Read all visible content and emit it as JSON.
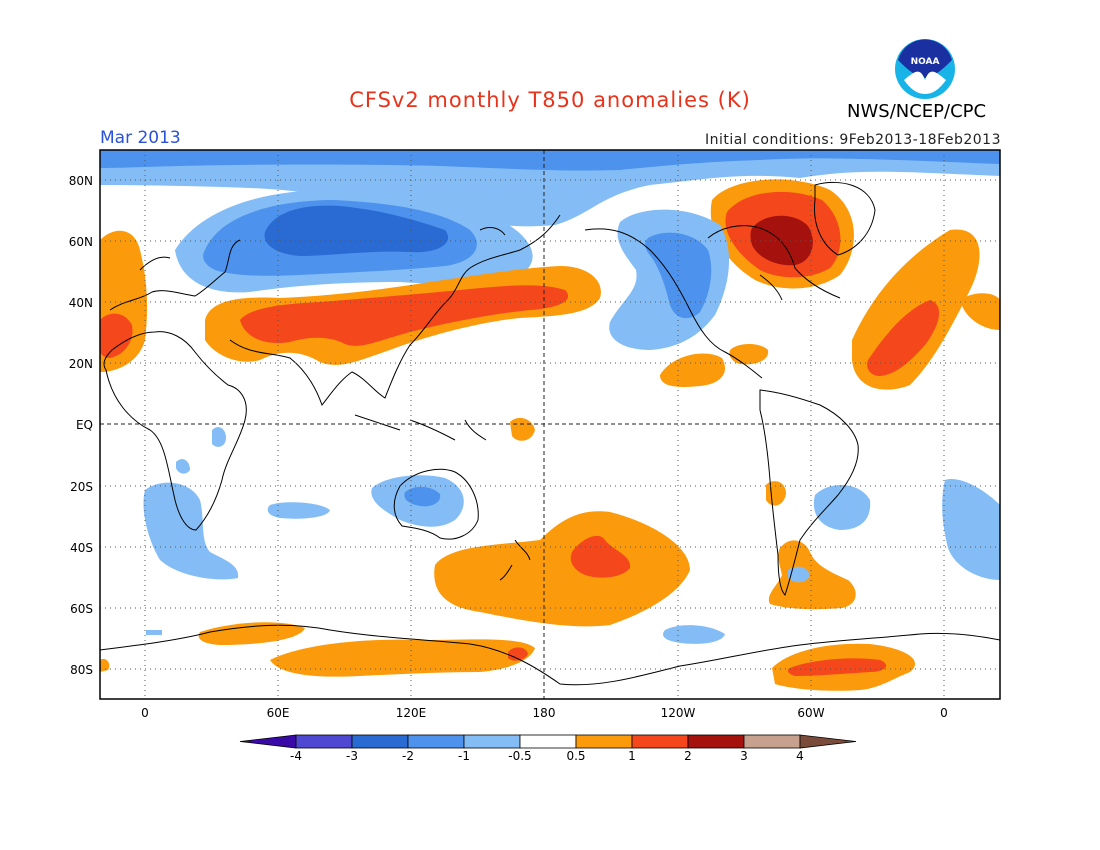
{
  "header": {
    "title": "CFSv2 monthly T850 anomalies (K)",
    "month": "Mar 2013",
    "initial_conditions": "Initial conditions: 9Feb2013-18Feb2013",
    "agency": "NWS/NCEP/CPC",
    "logo_text": "NOAA"
  },
  "map": {
    "lat_labels": [
      "80N",
      "60N",
      "40N",
      "20N",
      "EQ",
      "20S",
      "40S",
      "60S",
      "80S"
    ],
    "lon_labels": [
      "0",
      "60E",
      "120E",
      "180",
      "120W",
      "60W",
      "0"
    ],
    "projection": "cylindrical equidistant, centered on 180",
    "grid_lines": "dotted every 20 degrees; dashed equator and 180 meridian"
  },
  "colorbar": {
    "tick_labels": [
      "-4",
      "-3",
      "-2",
      "-1",
      "-0.5",
      "0.5",
      "1",
      "2",
      "3",
      "4"
    ],
    "bins": [
      {
        "range": "<-4",
        "color": "#3a0aa8"
      },
      {
        "range": "-4 to -3",
        "color": "#4f48d3"
      },
      {
        "range": "-3 to -2",
        "color": "#2a6ad3"
      },
      {
        "range": "-2 to -1",
        "color": "#4d92ec"
      },
      {
        "range": "-1 to -0.5",
        "color": "#84bdf6"
      },
      {
        "range": "-0.5 to 0.5",
        "color": "#ffffff"
      },
      {
        "range": "0.5 to 1",
        "color": "#fb9a0a"
      },
      {
        "range": "1 to 2",
        "color": "#f4471c"
      },
      {
        "range": "2 to 3",
        "color": "#a5120d"
      },
      {
        "range": "3 to 4",
        "color": "#c7a08e"
      },
      {
        "range": ">4",
        "color": "#7a4b3a"
      }
    ]
  },
  "anomaly_regions": [
    {
      "name": "Arctic band",
      "sign": "negative",
      "level": "-1 to -0.5"
    },
    {
      "name": "Northern Eurasia",
      "sign": "negative",
      "level": "-2 to -1",
      "core": "-3 to -2"
    },
    {
      "name": "Asia-Pacific mid-latitude band",
      "sign": "positive",
      "level": "0.5 to 1",
      "core": "1 to 2"
    },
    {
      "name": "Hudson Bay / Labrador",
      "sign": "positive",
      "level": "1 to 2",
      "core": "2 to 3"
    },
    {
      "name": "Western North America",
      "sign": "negative",
      "level": "-1 to -0.5",
      "core": "-2 to -1"
    },
    {
      "name": "Subtropical North Atlantic",
      "sign": "positive",
      "level": "0.5 to 1",
      "core": "1 to 2"
    },
    {
      "name": "Western Europe / Mediterranean",
      "sign": "positive",
      "level": "0.5 to 1",
      "core": "1 to 2"
    },
    {
      "name": "South Pacific",
      "sign": "positive",
      "level": "0.5 to 1",
      "core": "1 to 2"
    },
    {
      "name": "Southern Africa / South Atlantic",
      "sign": "negative",
      "level": "-1 to -0.5"
    },
    {
      "name": "Australia",
      "sign": "negative",
      "level": "-1 to -0.5",
      "core": "-2 to -1"
    },
    {
      "name": "Antarctica",
      "sign": "positive",
      "level": "0.5 to 1",
      "core": "1 to 2"
    }
  ]
}
